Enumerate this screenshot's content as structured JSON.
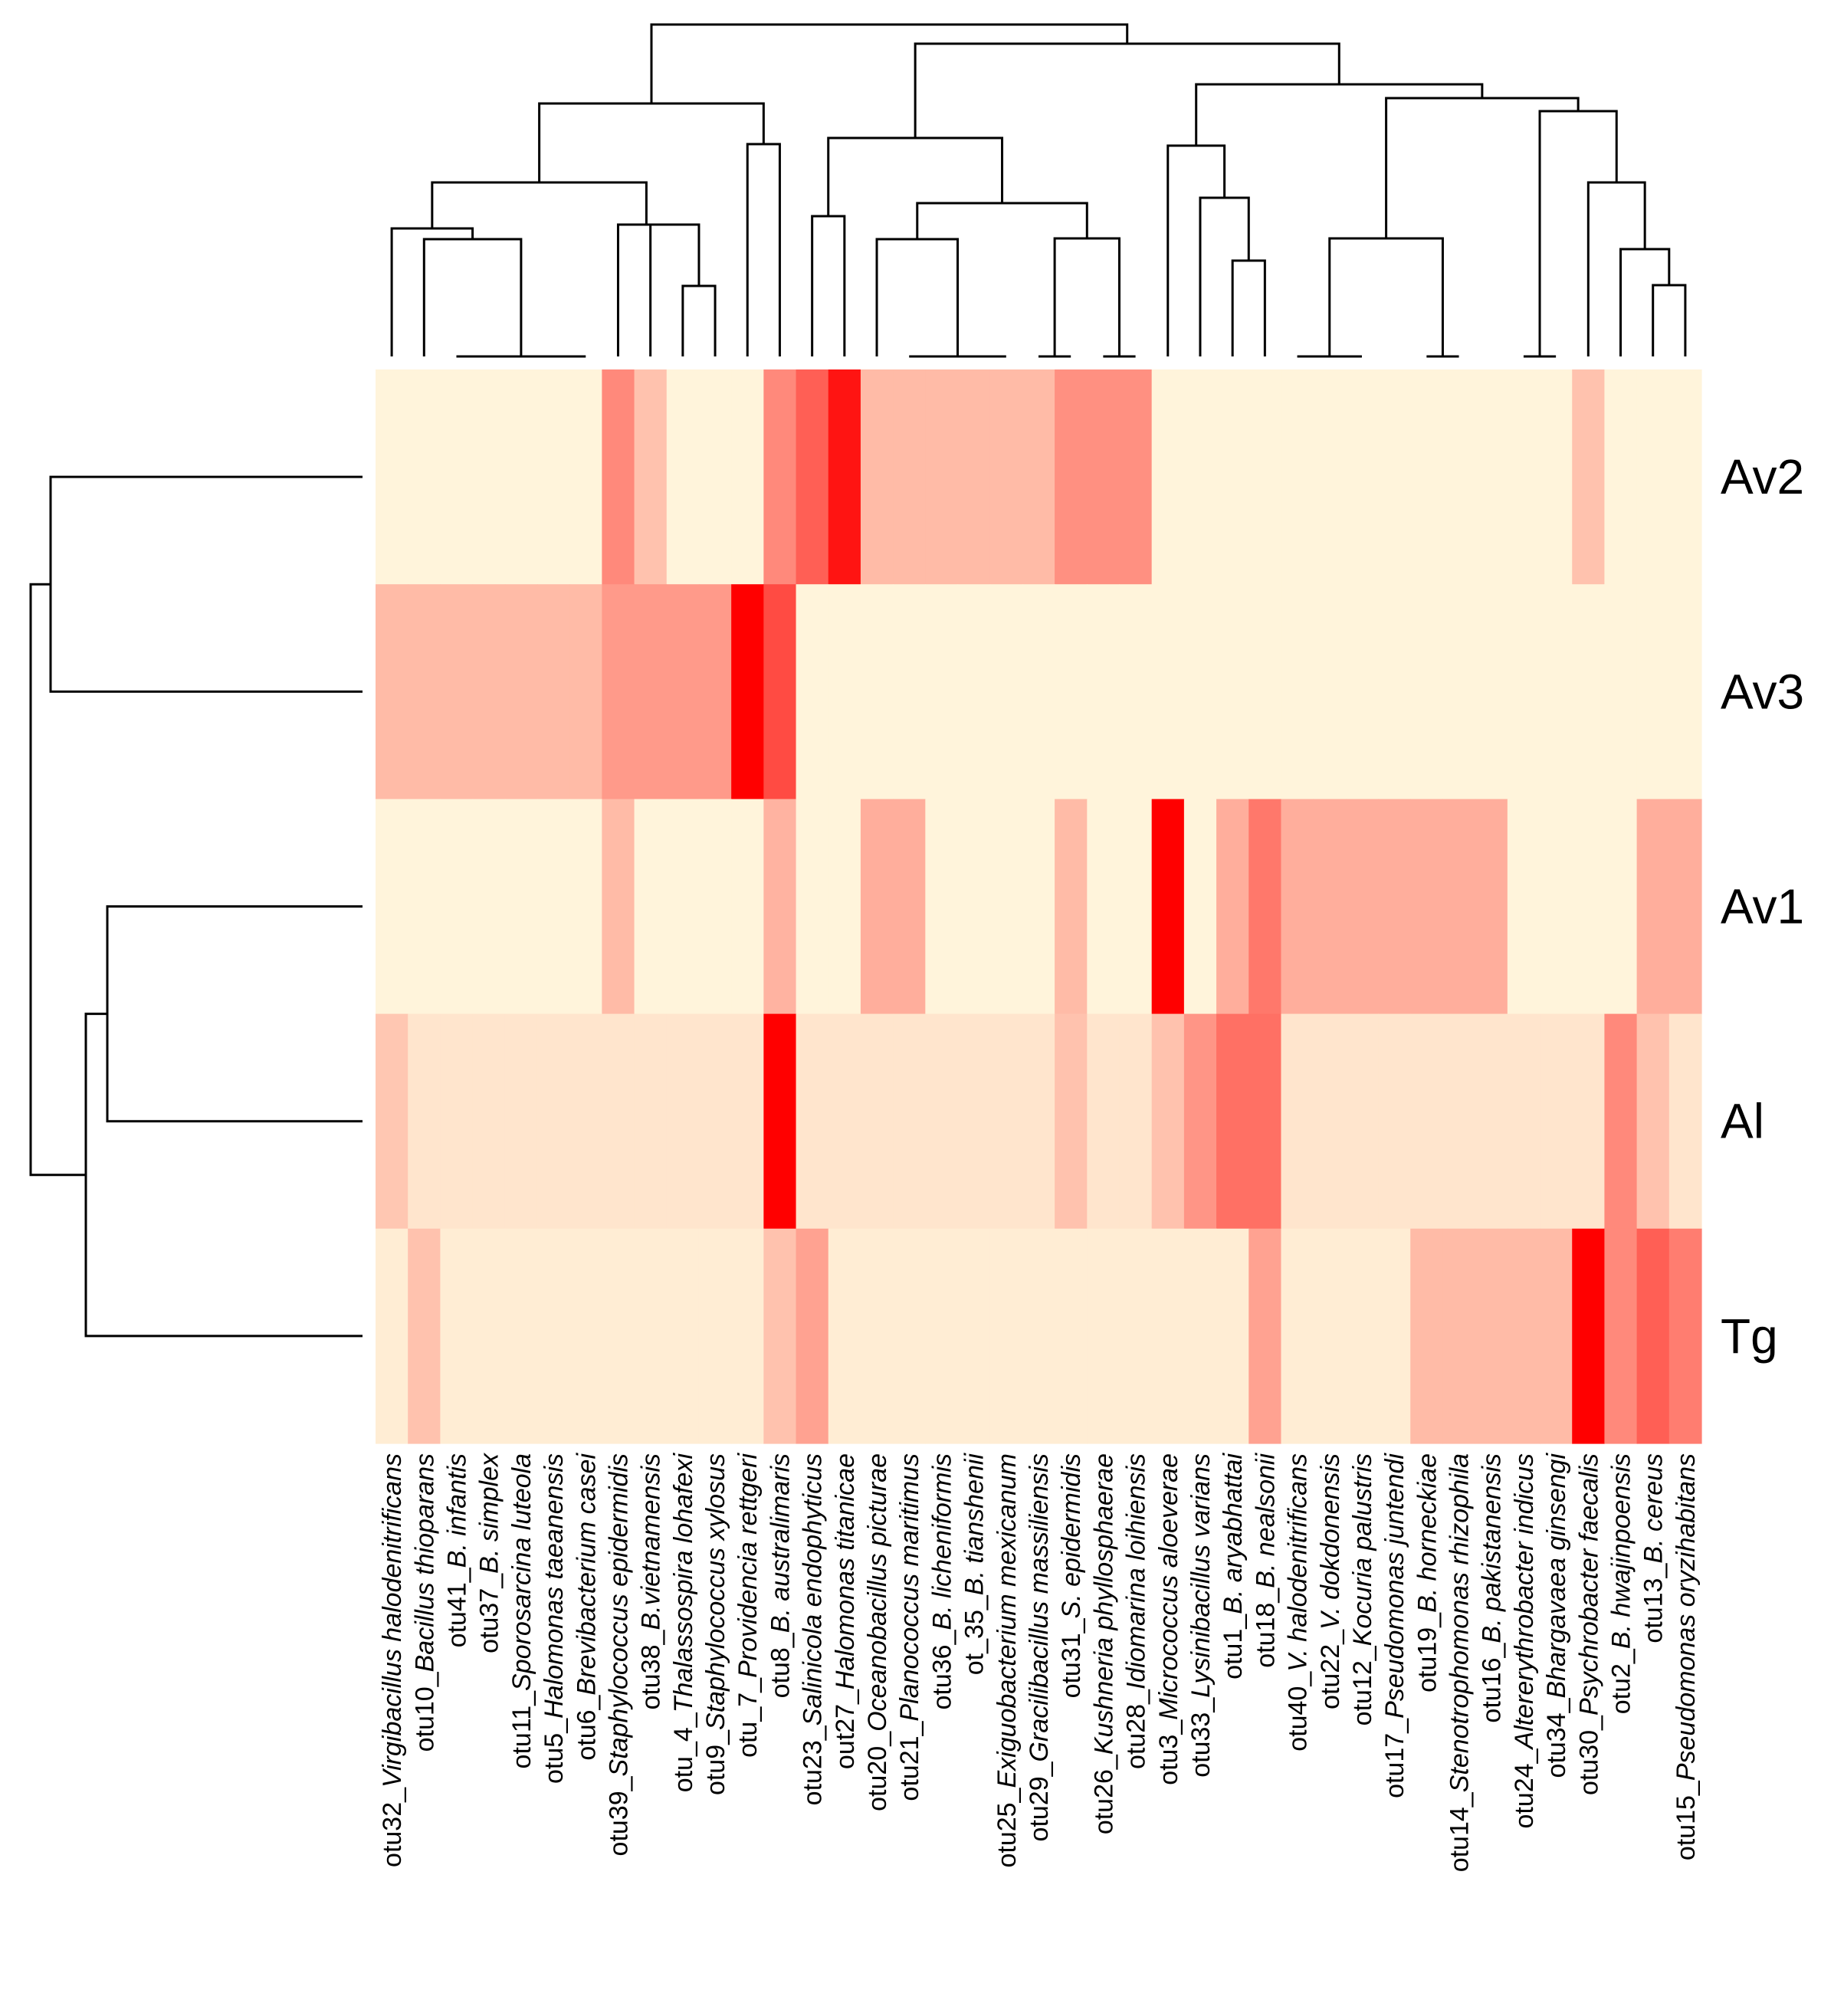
{
  "chart_data": {
    "type": "heatmap",
    "title": "",
    "color_scale": {
      "low": "#fff9df",
      "high": "#ff0000"
    },
    "rows": [
      "Av2",
      "Av3",
      "Av1",
      "Al",
      "Tg"
    ],
    "columns": [
      {
        "id": "otu32_",
        "name": "Virgibacillus halodenitrificans"
      },
      {
        "id": "otu10_",
        "name": "Bacillus thioparans"
      },
      {
        "id": "otu41_",
        "name": "B. infantis"
      },
      {
        "id": "otu37_",
        "name": "B. simplex"
      },
      {
        "id": "otu11_",
        "name": "Sporosarcina luteola"
      },
      {
        "id": "otu5_",
        "name": "Halomonas taeanensis"
      },
      {
        "id": "otu6_",
        "name": "Brevibacterium casei"
      },
      {
        "id": "otu39_",
        "name": "Staphylococcus epidermidis"
      },
      {
        "id": "otu38_",
        "name": "B.vietnamensis"
      },
      {
        "id": "otu_4_",
        "name": "Thalassospira lohafexi"
      },
      {
        "id": "otu9_",
        "name": "Staphylococcus xylosus"
      },
      {
        "id": "otu_7_",
        "name": "Providencia rettgeri"
      },
      {
        "id": "otu8_",
        "name": "B. australimaris"
      },
      {
        "id": "otu23_",
        "name": "Salinicola endophyticus"
      },
      {
        "id": "out27_",
        "name": "Halomonas titanicae"
      },
      {
        "id": "otu20_",
        "name": "Oceanobacillus picturae"
      },
      {
        "id": "otu21_",
        "name": "Planococcus maritimus"
      },
      {
        "id": "otu36_",
        "name": "B. licheniformis"
      },
      {
        "id": "ot_35_",
        "name": "B. tianshenii"
      },
      {
        "id": "otu25_",
        "name": "Exiguobacterium mexicanum"
      },
      {
        "id": "otu29_",
        "name": "Gracilibacillus massiliensis"
      },
      {
        "id": "otu31_",
        "name": "S. epidermidis"
      },
      {
        "id": "otu26_",
        "name": "Kushneria phyllosphaerae"
      },
      {
        "id": "otu28_",
        "name": "Idiomarina loihiensis"
      },
      {
        "id": "otu3_",
        "name": "Micrococcus aloeverae"
      },
      {
        "id": "otu33_",
        "name": "Lysinibacillus varians"
      },
      {
        "id": "otu1_",
        "name": "B. aryabhattai"
      },
      {
        "id": "otu18_",
        "name": "B. nealsonii"
      },
      {
        "id": "otu40_",
        "name": "V. halodenitrificans"
      },
      {
        "id": "otu22_",
        "name": "V. dokdonensis"
      },
      {
        "id": "otu12_",
        "name": "Kocuria palustris"
      },
      {
        "id": "otu17_",
        "name": "Pseudomonas juntendi"
      },
      {
        "id": "otu19_",
        "name": "B. horneckiae"
      },
      {
        "id": "otu14_",
        "name": "Stenotrophomonas rhizophila"
      },
      {
        "id": "otu16_",
        "name": "B. pakistanensis"
      },
      {
        "id": "otu24_",
        "name": "Altererythrobacter indicus"
      },
      {
        "id": "otu34_",
        "name": "Bhargavaea ginsengi"
      },
      {
        "id": "otu30_",
        "name": "Psychrobacter faecalis"
      },
      {
        "id": "otu2_",
        "name": "B. hwajinpoensis"
      },
      {
        "id": "otu13_",
        "name": "B. cereus"
      },
      {
        "id": "otu15_",
        "name": "Pseudomonas oryzihabitans"
      }
    ],
    "values": [
      [
        0.02,
        0.02,
        0.02,
        0.02,
        0.02,
        0.02,
        0.02,
        0.45,
        0.22,
        0.02,
        0.02,
        0.02,
        0.45,
        0.62,
        0.92,
        0.25,
        0.25,
        0.25,
        0.25,
        0.25,
        0.25,
        0.42,
        0.42,
        0.42,
        0.02,
        0.02,
        0.02,
        0.02,
        0.02,
        0.02,
        0.02,
        0.02,
        0.02,
        0.02,
        0.02,
        0.02,
        0.02,
        0.22,
        0.02,
        0.02,
        0.02
      ],
      [
        0.25,
        0.25,
        0.25,
        0.25,
        0.25,
        0.25,
        0.25,
        0.38,
        0.38,
        0.38,
        0.38,
        1.0,
        0.7,
        0.02,
        0.02,
        0.02,
        0.02,
        0.02,
        0.02,
        0.02,
        0.02,
        0.02,
        0.02,
        0.02,
        0.02,
        0.02,
        0.02,
        0.02,
        0.02,
        0.02,
        0.02,
        0.02,
        0.02,
        0.02,
        0.02,
        0.02,
        0.02,
        0.02,
        0.02,
        0.02,
        0.02
      ],
      [
        0.02,
        0.02,
        0.02,
        0.02,
        0.02,
        0.02,
        0.02,
        0.25,
        0.02,
        0.02,
        0.02,
        0.02,
        0.28,
        0.02,
        0.02,
        0.3,
        0.3,
        0.02,
        0.02,
        0.02,
        0.02,
        0.25,
        0.02,
        0.02,
        1.0,
        0.02,
        0.3,
        0.52,
        0.3,
        0.3,
        0.3,
        0.3,
        0.3,
        0.3,
        0.3,
        0.02,
        0.02,
        0.02,
        0.02,
        0.3,
        0.3
      ],
      [
        0.2,
        0.08,
        0.08,
        0.08,
        0.08,
        0.08,
        0.08,
        0.08,
        0.08,
        0.08,
        0.08,
        0.08,
        1.0,
        0.08,
        0.08,
        0.08,
        0.08,
        0.08,
        0.08,
        0.08,
        0.08,
        0.22,
        0.08,
        0.08,
        0.22,
        0.4,
        0.55,
        0.55,
        0.08,
        0.08,
        0.08,
        0.08,
        0.08,
        0.08,
        0.08,
        0.08,
        0.08,
        0.08,
        0.45,
        0.22,
        0.08
      ],
      [
        0.05,
        0.22,
        0.05,
        0.05,
        0.05,
        0.05,
        0.05,
        0.05,
        0.05,
        0.05,
        0.05,
        0.05,
        0.22,
        0.35,
        0.05,
        0.05,
        0.05,
        0.05,
        0.05,
        0.05,
        0.05,
        0.05,
        0.05,
        0.05,
        0.05,
        0.05,
        0.05,
        0.35,
        0.05,
        0.05,
        0.05,
        0.05,
        0.25,
        0.25,
        0.25,
        0.25,
        0.25,
        1.0,
        0.45,
        0.62,
        0.5
      ]
    ]
  }
}
